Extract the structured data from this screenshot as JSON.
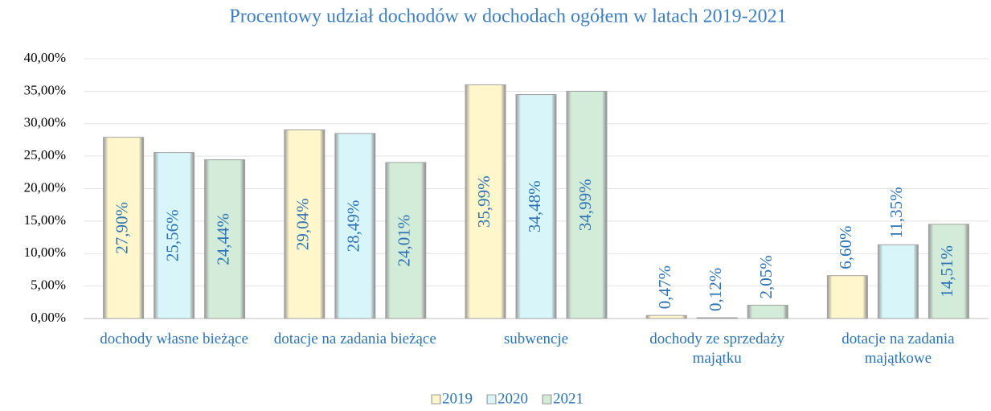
{
  "chart_data": {
    "type": "bar",
    "title": "Procentowy udział dochodów w dochodach ogółem w latach 2019-2021",
    "categories": [
      "dochody własne bieżące",
      "dotacje na zadania bieżące",
      "subwencje",
      "dochody ze sprzedaży majątku",
      "dotacje na zadania majątkowe"
    ],
    "series": [
      {
        "name": "2019",
        "color": "#fff6cc",
        "values": [
          27.9,
          29.04,
          35.99,
          0.47,
          6.6
        ],
        "value_labels": [
          "27,90%",
          "29,04%",
          "35,99%",
          "0,47%",
          "6,60%"
        ]
      },
      {
        "name": "2020",
        "color": "#d8f6fa",
        "values": [
          25.56,
          28.49,
          34.48,
          0.12,
          11.35
        ],
        "value_labels": [
          "25,56%",
          "28,49%",
          "34,48%",
          "0,12%",
          "11,35%"
        ]
      },
      {
        "name": "2021",
        "color": "#d3ecd9",
        "values": [
          24.44,
          24.01,
          34.99,
          2.05,
          14.51
        ],
        "value_labels": [
          "24,44%",
          "24,01%",
          "34,99%",
          "2,05%",
          "14,51%"
        ]
      }
    ],
    "ylim": [
      0,
      40
    ],
    "yticks": [
      {
        "value": 0,
        "label": "0,00%"
      },
      {
        "value": 5,
        "label": "5,00%"
      },
      {
        "value": 10,
        "label": "10,00%"
      },
      {
        "value": 15,
        "label": "15,00%"
      },
      {
        "value": 20,
        "label": "20,00%"
      },
      {
        "value": 25,
        "label": "25,00%"
      },
      {
        "value": 30,
        "label": "30,00%"
      },
      {
        "value": 35,
        "label": "35,00%"
      },
      {
        "value": 40,
        "label": "40,00%"
      }
    ],
    "grid": true,
    "legend": "bottom"
  }
}
